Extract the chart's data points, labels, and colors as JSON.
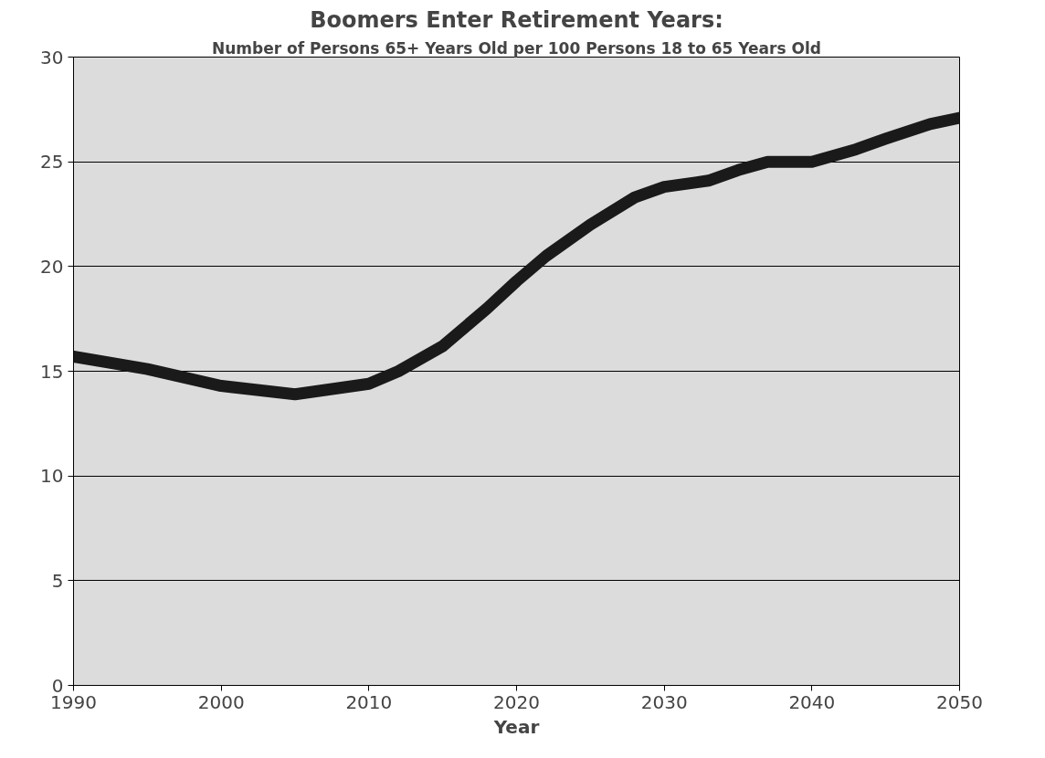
{
  "chart_data": {
    "type": "line",
    "title": "Boomers Enter Retirement Years:",
    "subtitle": "Number of Persons 65+ Years Old per 100 Persons 18 to 65 Years Old",
    "xlabel": "Year",
    "x": [
      1990,
      1995,
      2000,
      2005,
      2010,
      2012,
      2015,
      2018,
      2020,
      2022,
      2025,
      2028,
      2030,
      2033,
      2035,
      2037,
      2040,
      2043,
      2045,
      2048,
      2050
    ],
    "series": [
      {
        "color": "#1a1a1a",
        "values": [
          15.7,
          15.1,
          14.3,
          13.9,
          14.4,
          15.0,
          16.2,
          18.0,
          19.3,
          20.5,
          22.0,
          23.3,
          23.8,
          24.1,
          24.6,
          25.0,
          25.0,
          25.6,
          26.1,
          26.8,
          27.1
        ]
      }
    ],
    "xlim": [
      1990,
      2050
    ],
    "xticks": [
      1990,
      2000,
      2010,
      2020,
      2030,
      2040,
      2050
    ],
    "ylim": [
      0,
      30
    ],
    "yticks": [
      0,
      5,
      10,
      15,
      20,
      25,
      30
    ],
    "grid": "y",
    "marker": "none",
    "line_style": "solid"
  }
}
